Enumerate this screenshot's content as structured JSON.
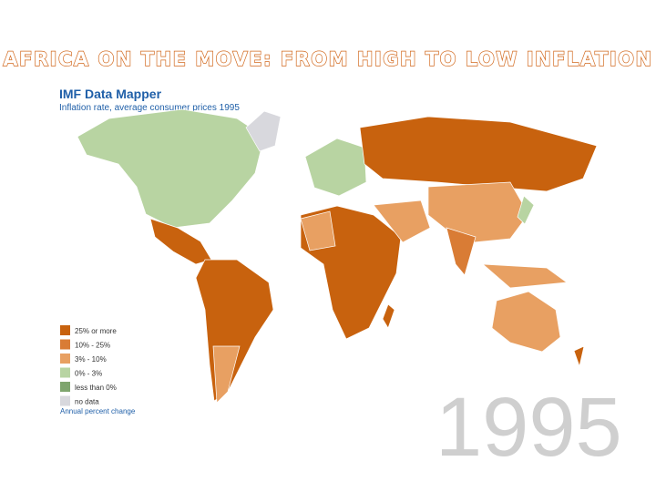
{
  "title": "AFRICA ON THE MOVE: FROM HIGH TO LOW INFLATION",
  "map": {
    "source": "IMF Data Mapper",
    "subtitle": "Inflation rate, average consumer prices 1995",
    "legend": {
      "items": [
        {
          "label": "25% or more",
          "color": "#c8620e"
        },
        {
          "label": "10% - 25%",
          "color": "#d97c35"
        },
        {
          "label": "3% - 10%",
          "color": "#e8a062"
        },
        {
          "label": "0% - 3%",
          "color": "#b8d4a2"
        },
        {
          "label": "less than 0%",
          "color": "#7fa56e"
        },
        {
          "label": "no data",
          "color": "#d8d8dd"
        }
      ],
      "note": "Annual percent change"
    }
  },
  "year": "1995"
}
